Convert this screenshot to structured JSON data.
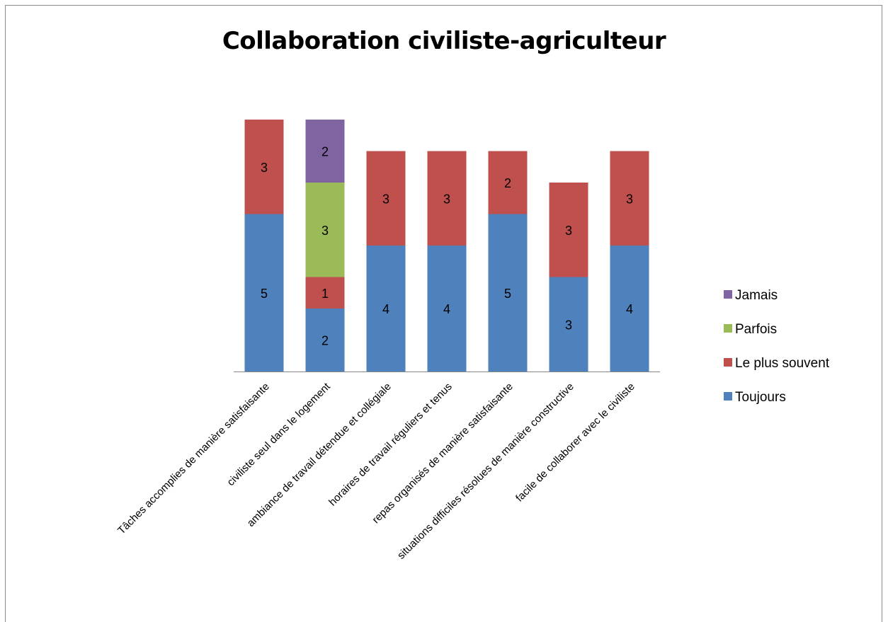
{
  "chart_data": {
    "type": "bar",
    "stacked": true,
    "title": "Collaboration civiliste-agriculteur",
    "categories": [
      "Tâches accomplies de manière satisfaisante",
      "civiliste seul dans le logement",
      "ambiance de travail détendue et collégiale",
      "horaires de travail réguliers et tenus",
      "repas organisés de manière satisfaisante",
      "situations difficiles résolues de manière constructive",
      "facile de collaborer avec le civiliste"
    ],
    "series": [
      {
        "name": "Toujours",
        "color": "#4f81bd",
        "values": [
          5,
          2,
          4,
          4,
          5,
          3,
          4
        ]
      },
      {
        "name": "Le plus souvent",
        "color": "#c0504d",
        "values": [
          3,
          1,
          3,
          3,
          2,
          3,
          3
        ]
      },
      {
        "name": "Parfois",
        "color": "#9bbb59",
        "values": [
          0,
          3,
          0,
          0,
          0,
          0,
          0
        ]
      },
      {
        "name": "Jamais",
        "color": "#8064a2",
        "values": [
          0,
          2,
          0,
          0,
          0,
          0,
          0
        ]
      }
    ],
    "ylim": [
      0,
      8
    ],
    "legend": [
      "Jamais",
      "Parfois",
      "Le plus souvent",
      "Toujours"
    ],
    "legend_position": "right",
    "grid": false,
    "data_labels": true
  }
}
